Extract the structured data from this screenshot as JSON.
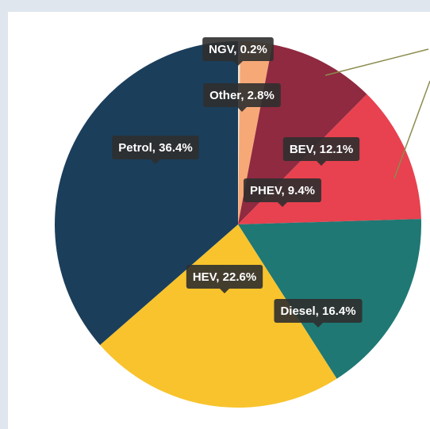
{
  "chart_data": {
    "type": "pie",
    "categories": [
      "NGV",
      "Other",
      "PHEV",
      "BEV",
      "Diesel",
      "HEV",
      "Petrol"
    ],
    "values": [
      0.2,
      2.8,
      9.4,
      12.1,
      16.4,
      22.6,
      36.4
    ],
    "value_labels": [
      "NGV, 0.2%",
      "Other, 2.8%",
      "PHEV, 9.4%",
      "BEV, 12.1%",
      "Diesel, 16.4%",
      "HEV, 22.6%",
      "Petrol, 36.4%"
    ],
    "colors": [
      "#f3e2cf",
      "#f6a877",
      "#8f2a40",
      "#e8414f",
      "#1f7874",
      "#f8c32c",
      "#1b3e5b"
    ]
  }
}
